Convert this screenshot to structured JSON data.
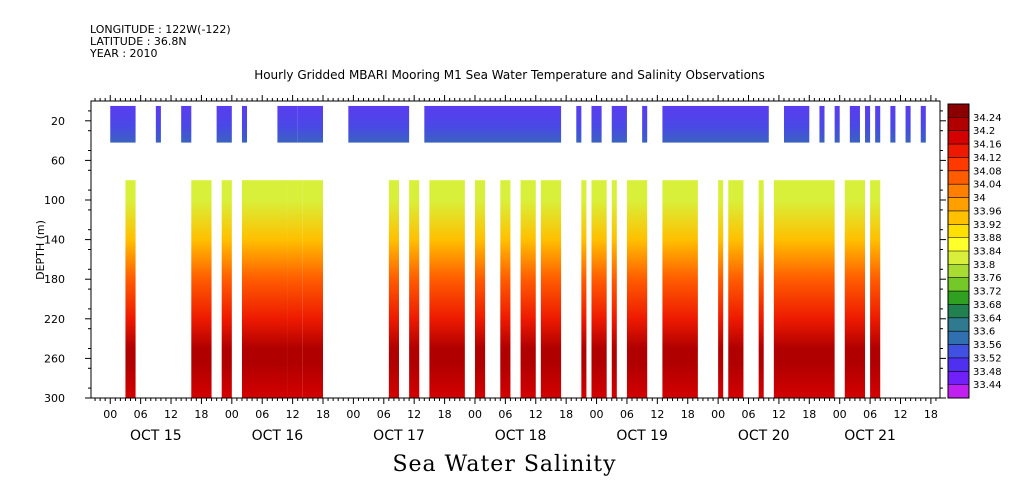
{
  "header": {
    "longitude": "LONGITUDE : 122W(-122)",
    "latitude": "LATITUDE : 36.8N",
    "year": "YEAR : 2010",
    "title": "Hourly Gridded MBARI Mooring M1 Sea Water Temperature and Salinity Observations"
  },
  "footer": {
    "variable_title": "Sea Water Salinity"
  },
  "chart_data": {
    "type": "heatmap",
    "title": "Hourly Gridded MBARI Mooring M1 Sea Water Temperature and Salinity Observations",
    "variable": "Sea Water Salinity",
    "xlabel": "",
    "ylabel": "DEPTH (m)",
    "x_hour_range": [
      0,
      162
    ],
    "ylim": [
      300,
      0
    ],
    "y_ticks": [
      20,
      60,
      100,
      140,
      180,
      220,
      260,
      300
    ],
    "y_tick_labels": [
      "20",
      "60",
      "100",
      "140",
      "180",
      "220",
      "260",
      "300"
    ],
    "x_hour_labels": [
      "00",
      "06",
      "12",
      "18",
      "00",
      "06",
      "12",
      "18",
      "00",
      "06",
      "12",
      "18",
      "00",
      "06",
      "12",
      "18",
      "00",
      "06",
      "12",
      "18",
      "00",
      "06",
      "12",
      "18",
      "00",
      "06",
      "12",
      "18"
    ],
    "x_hour_positions": [
      0,
      6,
      12,
      18,
      24,
      30,
      36,
      42,
      48,
      54,
      60,
      66,
      72,
      78,
      84,
      90,
      96,
      102,
      108,
      114,
      120,
      126,
      132,
      138,
      144,
      150,
      156,
      162
    ],
    "day_labels": [
      "OCT 15",
      "OCT 16",
      "OCT 17",
      "OCT 18",
      "OCT 19",
      "OCT 20",
      "OCT 21"
    ],
    "day_label_hours": [
      9,
      33,
      57,
      81,
      105,
      129,
      150
    ],
    "colorbar_levels": [
      "34.24",
      "34.2",
      "34.16",
      "34.12",
      "34.08",
      "34.04",
      "34",
      "33.96",
      "33.92",
      "33.88",
      "33.84",
      "33.8",
      "33.76",
      "33.72",
      "33.68",
      "33.64",
      "33.6",
      "33.56",
      "33.52",
      "33.48",
      "33.44"
    ],
    "colorbar_colors": [
      "#8b0000",
      "#b00000",
      "#d40000",
      "#ee1a00",
      "#ff3a00",
      "#ff5c00",
      "#ff8000",
      "#ffa000",
      "#ffc000",
      "#ffe000",
      "#ffff2a",
      "#d8f03a",
      "#a8dc32",
      "#74c828",
      "#30a020",
      "#208050",
      "#307a90",
      "#3070b0",
      "#4050e0",
      "#5030f0",
      "#7020f8",
      "#c020f0"
    ],
    "surface_layer_salinity": 33.57,
    "deep_profile_salinity": [
      {
        "depth": 80,
        "value": 33.8
      },
      {
        "depth": 100,
        "value": 33.82
      },
      {
        "depth": 140,
        "value": 33.92
      },
      {
        "depth": 180,
        "value": 34.04
      },
      {
        "depth": 220,
        "value": 34.14
      },
      {
        "depth": 250,
        "value": 34.22
      },
      {
        "depth": 265,
        "value": 34.22
      },
      {
        "depth": 300,
        "value": 34.16
      }
    ],
    "upper_coverage_hours": [
      [
        0,
        5
      ],
      [
        9,
        10
      ],
      [
        14,
        16
      ],
      [
        21,
        24
      ],
      [
        26,
        27
      ],
      [
        33,
        37
      ],
      [
        37,
        42
      ],
      [
        47,
        59
      ],
      [
        62,
        89
      ],
      [
        92,
        93
      ],
      [
        95,
        97
      ],
      [
        99,
        102
      ],
      [
        105,
        106
      ],
      [
        109,
        130
      ],
      [
        133,
        138
      ],
      [
        140,
        141
      ],
      [
        143,
        144
      ],
      [
        146,
        148
      ],
      [
        149,
        150
      ],
      [
        151,
        152
      ],
      [
        154,
        155
      ],
      [
        157,
        158
      ],
      [
        160,
        161
      ]
    ],
    "deep_coverage_hours": [
      [
        3,
        5
      ],
      [
        16,
        20
      ],
      [
        22,
        24
      ],
      [
        26,
        35
      ],
      [
        35,
        38
      ],
      [
        38,
        42
      ],
      [
        55,
        57
      ],
      [
        59,
        61
      ],
      [
        63,
        70
      ],
      [
        72,
        74
      ],
      [
        77,
        79
      ],
      [
        81,
        84
      ],
      [
        85,
        89
      ],
      [
        93,
        94
      ],
      [
        95,
        98
      ],
      [
        99,
        100
      ],
      [
        102,
        106
      ],
      [
        109,
        116
      ],
      [
        120,
        121
      ],
      [
        122,
        125
      ],
      [
        128,
        129
      ],
      [
        131,
        143
      ],
      [
        145,
        149
      ],
      [
        150,
        152
      ]
    ]
  }
}
